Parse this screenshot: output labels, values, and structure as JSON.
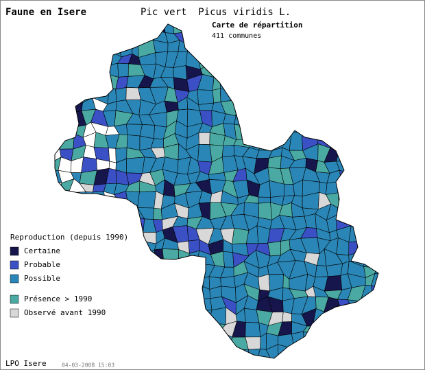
{
  "header": {
    "title": "Faune en Isere",
    "species": "Pic vert  Picus viridis L.",
    "map_title": "Carte de répartition",
    "communes": "411 communes"
  },
  "legend": {
    "title": "Reproduction (depuis 1990)",
    "items": [
      {
        "label": "Certaine",
        "color": "#16164c"
      },
      {
        "label": "Probable",
        "color": "#3a50c4"
      },
      {
        "label": "Possible",
        "color": "#2a86b6"
      },
      {
        "label": "Présence > 1990",
        "color": "#4aa9a2"
      },
      {
        "label": "Observé avant 1990",
        "color": "#d8d8d8"
      }
    ]
  },
  "footer": {
    "source": "LPO Isere",
    "date": "04-03-2008 15:03"
  }
}
